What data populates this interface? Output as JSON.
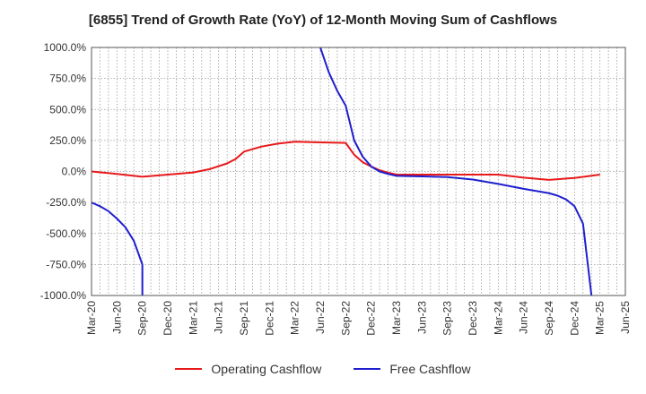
{
  "chart_data": {
    "type": "line",
    "title": "[6855]  Trend of Growth Rate (YoY) of 12-Month Moving Sum of Cashflows",
    "xlabel": "",
    "ylabel": "",
    "ylim": [
      -1000,
      1000
    ],
    "y_ticks": [
      1000,
      750,
      500,
      250,
      0,
      -250,
      -500,
      -750,
      -1000
    ],
    "y_tick_labels": [
      "1000.0%",
      "750.0%",
      "500.0%",
      "250.0%",
      "0.0%",
      "-250.0%",
      "-500.0%",
      "-750.0%",
      "-1000.0%"
    ],
    "x_tick_labels": [
      "Mar-20",
      "Jun-20",
      "Sep-20",
      "Dec-20",
      "Mar-21",
      "Jun-21",
      "Sep-21",
      "Dec-21",
      "Mar-22",
      "Jun-22",
      "Sep-22",
      "Dec-22",
      "Mar-23",
      "Jun-23",
      "Sep-23",
      "Dec-23",
      "Mar-24",
      "Jun-24",
      "Sep-24",
      "Dec-24",
      "Mar-25",
      "Jun-25"
    ],
    "x_unit": "month",
    "grid": true,
    "legend_position": "bottom",
    "series": [
      {
        "name": "Operating Cashflow",
        "color": "#e8191b",
        "points": [
          [
            "2020-03",
            0
          ],
          [
            "2020-06",
            -20
          ],
          [
            "2020-09",
            -42
          ],
          [
            "2020-12",
            -25
          ],
          [
            "2021-03",
            -8
          ],
          [
            "2021-05",
            20
          ],
          [
            "2021-07",
            65
          ],
          [
            "2021-08",
            100
          ],
          [
            "2021-09",
            160
          ],
          [
            "2021-11",
            200
          ],
          [
            "2022-01",
            225
          ],
          [
            "2022-03",
            240
          ],
          [
            "2022-06",
            235
          ],
          [
            "2022-09",
            230
          ],
          [
            "2022-10",
            135
          ],
          [
            "2022-11",
            75
          ],
          [
            "2022-12",
            40
          ],
          [
            "2023-01",
            10
          ],
          [
            "2023-02",
            -10
          ],
          [
            "2023-03",
            -25
          ],
          [
            "2023-06",
            -25
          ],
          [
            "2023-09",
            -25
          ],
          [
            "2023-12",
            -25
          ],
          [
            "2024-03",
            -25
          ],
          [
            "2024-06",
            -50
          ],
          [
            "2024-09",
            -68
          ],
          [
            "2024-12",
            -52
          ],
          [
            "2025-03",
            -25
          ]
        ]
      },
      {
        "name": "Free Cashflow",
        "color": "#1f1fcf",
        "points": [
          [
            "2020-03",
            -250
          ],
          [
            "2020-04",
            -280
          ],
          [
            "2020-05",
            -320
          ],
          [
            "2020-06",
            -380
          ],
          [
            "2020-07",
            -450
          ],
          [
            "2020-08",
            -560
          ],
          [
            "2020-09",
            -750
          ],
          [
            "2020-09",
            -1000
          ],
          null,
          [
            "2022-06",
            1000
          ],
          [
            "2022-07",
            800
          ],
          [
            "2022-08",
            650
          ],
          [
            "2022-09",
            530
          ],
          [
            "2022-10",
            250
          ],
          [
            "2022-11",
            120
          ],
          [
            "2022-12",
            40
          ],
          [
            "2023-01",
            0
          ],
          [
            "2023-02",
            -20
          ],
          [
            "2023-03",
            -35
          ],
          [
            "2023-06",
            -40
          ],
          [
            "2023-09",
            -45
          ],
          [
            "2023-12",
            -65
          ],
          [
            "2024-03",
            -100
          ],
          [
            "2024-06",
            -140
          ],
          [
            "2024-09",
            -175
          ],
          [
            "2024-10",
            -195
          ],
          [
            "2024-11",
            -225
          ],
          [
            "2024-12",
            -280
          ],
          [
            "2025-01",
            -420
          ],
          [
            "2025-02",
            -1000
          ]
        ]
      }
    ]
  }
}
